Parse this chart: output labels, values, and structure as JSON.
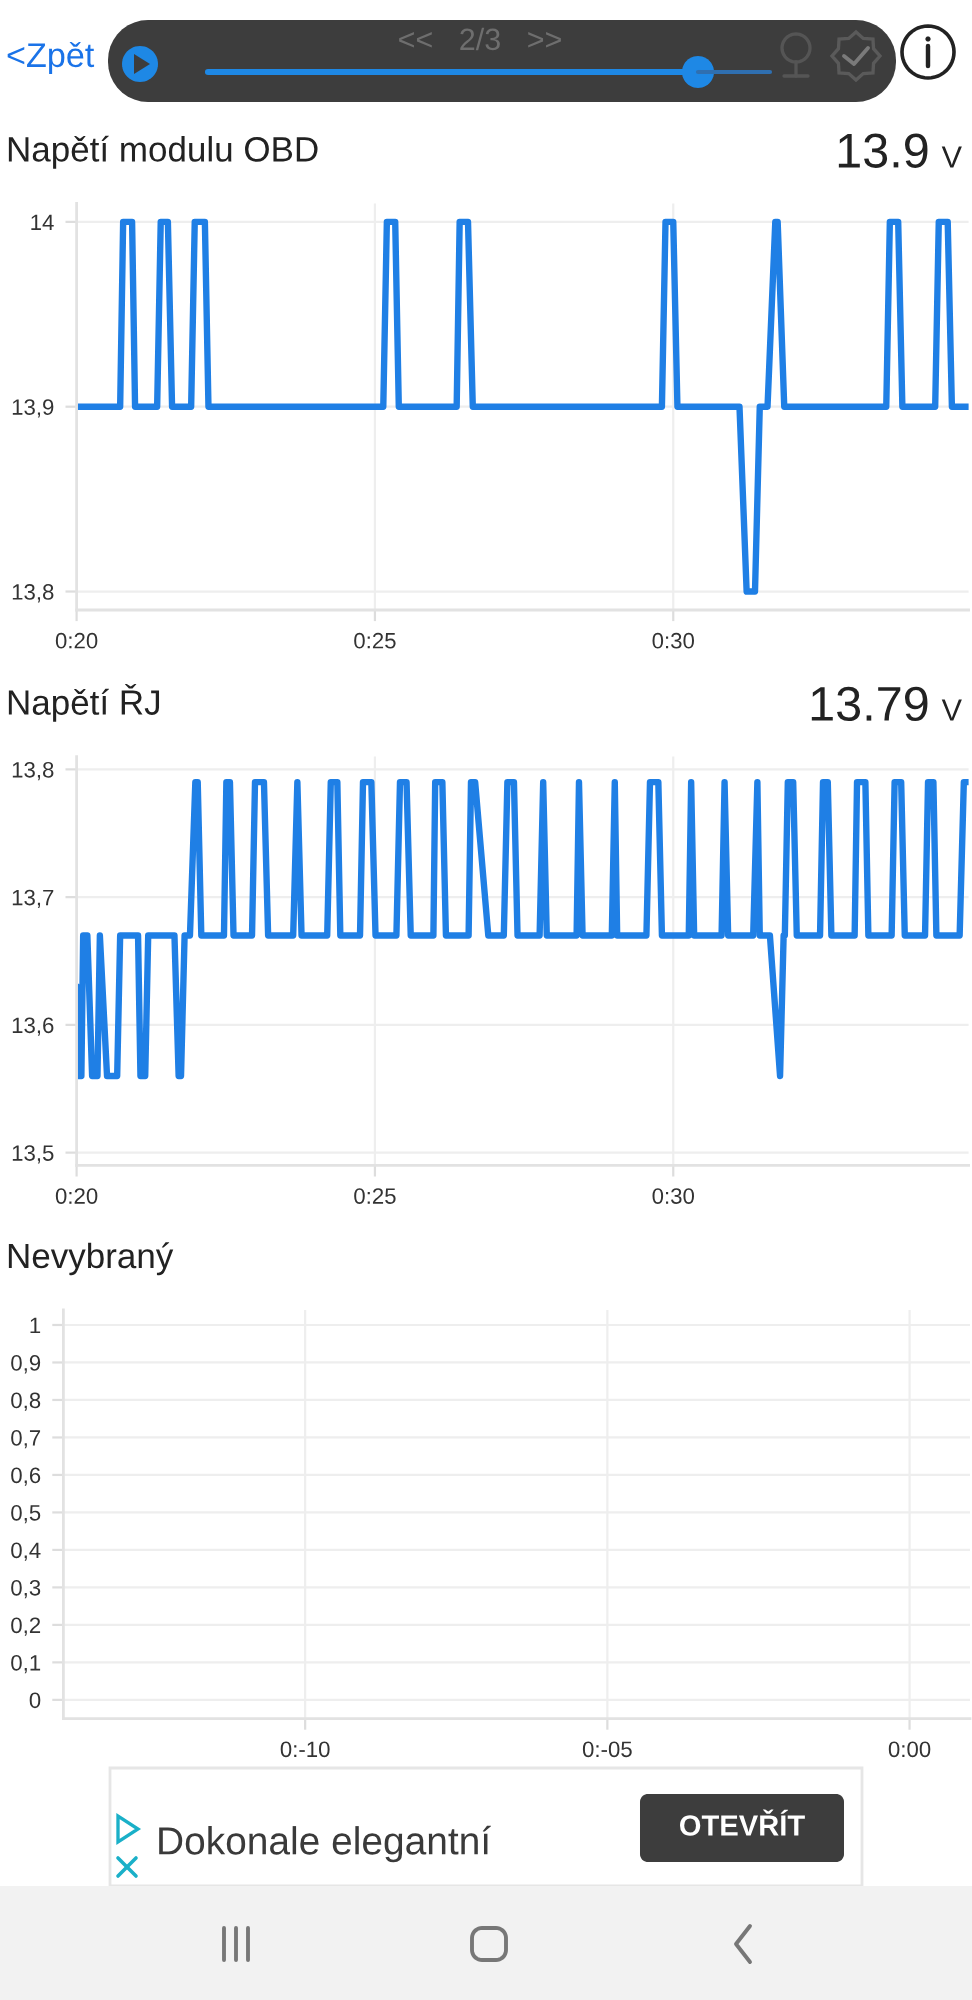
{
  "chart_data": [
    {
      "type": "other",
      "annotations": [
        "<Zpět",
        "<<   2/3   >>"
      ]
    },
    {
      "type": "line",
      "title": "Napětí modulu OBD",
      "annotations": [
        "13.9 V"
      ],
      "xlim": [
        20,
        34.95
      ],
      "ylim": [
        13.79,
        14.01
      ],
      "xticks": [
        {
          "value": 20,
          "label": "0:20"
        },
        {
          "value": 25,
          "label": "0:25"
        },
        {
          "value": 30,
          "label": "0:30"
        }
      ],
      "yticks": [
        {
          "value": 13.8,
          "label": "13,8"
        },
        {
          "value": 13.9,
          "label": "13,9"
        },
        14
      ],
      "grid": true,
      "series": [
        {
          "color": "#1f7fe5",
          "x": [
            20.0,
            20.73,
            20.78,
            20.93,
            20.98,
            21.35,
            21.41,
            21.53,
            21.6,
            21.92,
            21.98,
            22.15,
            22.21,
            25.14,
            25.2,
            25.34,
            25.4,
            26.37,
            26.42,
            26.56,
            26.64,
            29.81,
            29.87,
            30.0,
            30.07,
            31.11,
            31.23,
            31.37,
            31.45,
            31.58,
            31.71,
            31.75,
            31.86,
            33.57,
            33.63,
            33.77,
            33.84,
            34.39,
            34.45,
            34.6,
            34.67,
            34.95
          ],
          "values": [
            13.9,
            13.9,
            14,
            14,
            13.9,
            13.9,
            14,
            14,
            13.9,
            13.9,
            14,
            14,
            13.9,
            13.9,
            14,
            14,
            13.9,
            13.9,
            14,
            14,
            13.9,
            13.9,
            14,
            14,
            13.9,
            13.9,
            13.8,
            13.8,
            13.9,
            13.9,
            14,
            14,
            13.9,
            13.9,
            14,
            14,
            13.9,
            13.9,
            14,
            14,
            13.9,
            13.9
          ]
        }
      ]
    },
    {
      "type": "line",
      "title": "Napětí ŘJ",
      "annotations": [
        "13.79 V"
      ],
      "xlim": [
        20,
        34.95
      ],
      "ylim": [
        13.49,
        13.81
      ],
      "xticks": [
        {
          "value": 20,
          "label": "0:20"
        },
        {
          "value": 25,
          "label": "0:25"
        },
        {
          "value": 30,
          "label": "0:30"
        }
      ],
      "yticks": [
        {
          "value": 13.5,
          "label": "13,5"
        },
        {
          "value": 13.6,
          "label": "13,6"
        },
        {
          "value": 13.7,
          "label": "13,7"
        },
        {
          "value": 13.8,
          "label": "13,8"
        }
      ],
      "grid": true,
      "series": [
        {
          "color": "#1f7fe5",
          "x": [
            20.0,
            20.03,
            20.08,
            20.11,
            20.18,
            20.26,
            20.35,
            20.39,
            20.51,
            20.68,
            20.73,
            21.03,
            21.07,
            21.15,
            21.2,
            21.64,
            21.71,
            21.75,
            21.81,
            21.9,
            21.99,
            22.03,
            22.09,
            22.47,
            22.51,
            22.57,
            22.63,
            22.94,
            22.99,
            23.14,
            23.21,
            23.63,
            23.7,
            23.77,
            24.2,
            24.26,
            24.37,
            24.42,
            24.75,
            24.8,
            24.94,
            25.01,
            25.36,
            25.42,
            25.53,
            25.6,
            25.98,
            26.01,
            26.13,
            26.19,
            26.57,
            26.61,
            26.68,
            26.9,
            27.16,
            27.22,
            27.33,
            27.39,
            27.76,
            27.82,
            27.88,
            28.38,
            28.42,
            28.48,
            28.97,
            29.02,
            29.06,
            29.55,
            29.61,
            29.75,
            29.81,
            30.26,
            30.3,
            30.35,
            30.81,
            30.86,
            30.92,
            31.34,
            31.41,
            31.45,
            31.62,
            31.79,
            31.85,
            31.87,
            31.92,
            32.01,
            32.07,
            32.46,
            32.51,
            32.59,
            32.65,
            33.04,
            33.08,
            33.22,
            33.27,
            33.66,
            33.71,
            33.82,
            33.88,
            34.22,
            34.27,
            34.36,
            34.41,
            34.8,
            34.87,
            34.95
          ],
          "values": [
            13.63,
            13.56,
            13.56,
            13.67,
            13.67,
            13.56,
            13.56,
            13.67,
            13.56,
            13.56,
            13.67,
            13.67,
            13.56,
            13.56,
            13.67,
            13.67,
            13.56,
            13.56,
            13.67,
            13.67,
            13.79,
            13.79,
            13.67,
            13.67,
            13.79,
            13.79,
            13.67,
            13.67,
            13.79,
            13.79,
            13.67,
            13.67,
            13.79,
            13.67,
            13.67,
            13.79,
            13.79,
            13.67,
            13.67,
            13.79,
            13.79,
            13.67,
            13.67,
            13.79,
            13.79,
            13.67,
            13.67,
            13.79,
            13.79,
            13.67,
            13.67,
            13.79,
            13.79,
            13.67,
            13.67,
            13.79,
            13.79,
            13.67,
            13.67,
            13.79,
            13.67,
            13.67,
            13.79,
            13.67,
            13.67,
            13.79,
            13.67,
            13.67,
            13.79,
            13.79,
            13.67,
            13.67,
            13.79,
            13.67,
            13.67,
            13.79,
            13.67,
            13.67,
            13.79,
            13.67,
            13.67,
            13.56,
            13.67,
            13.67,
            13.79,
            13.79,
            13.67,
            13.67,
            13.79,
            13.79,
            13.67,
            13.67,
            13.79,
            13.79,
            13.67,
            13.67,
            13.79,
            13.79,
            13.67,
            13.67,
            13.79,
            13.79,
            13.67,
            13.67,
            13.79,
            13.79
          ]
        }
      ]
    },
    {
      "type": "line",
      "title": "Nevybraný",
      "categories": [
        "0:-10",
        "0:-05",
        "0:00"
      ],
      "ylim": [
        -0.05,
        1.04
      ],
      "yticks": [
        0,
        {
          "value": 0.1,
          "label": "0,1"
        },
        {
          "value": 0.2,
          "label": "0,2"
        },
        {
          "value": 0.3,
          "label": "0,3"
        },
        {
          "value": 0.4,
          "label": "0,4"
        },
        {
          "value": 0.5,
          "label": "0,5"
        },
        {
          "value": 0.6,
          "label": "0,6"
        },
        {
          "value": 0.7,
          "label": "0,7"
        },
        {
          "value": 0.8,
          "label": "0,8"
        },
        {
          "value": 0.9,
          "label": "0,9"
        },
        1
      ],
      "grid": true
    },
    {
      "type": "other",
      "annotations": [
        "Dokonale elegantní",
        "OTEVŘÍT"
      ]
    }
  ]
}
